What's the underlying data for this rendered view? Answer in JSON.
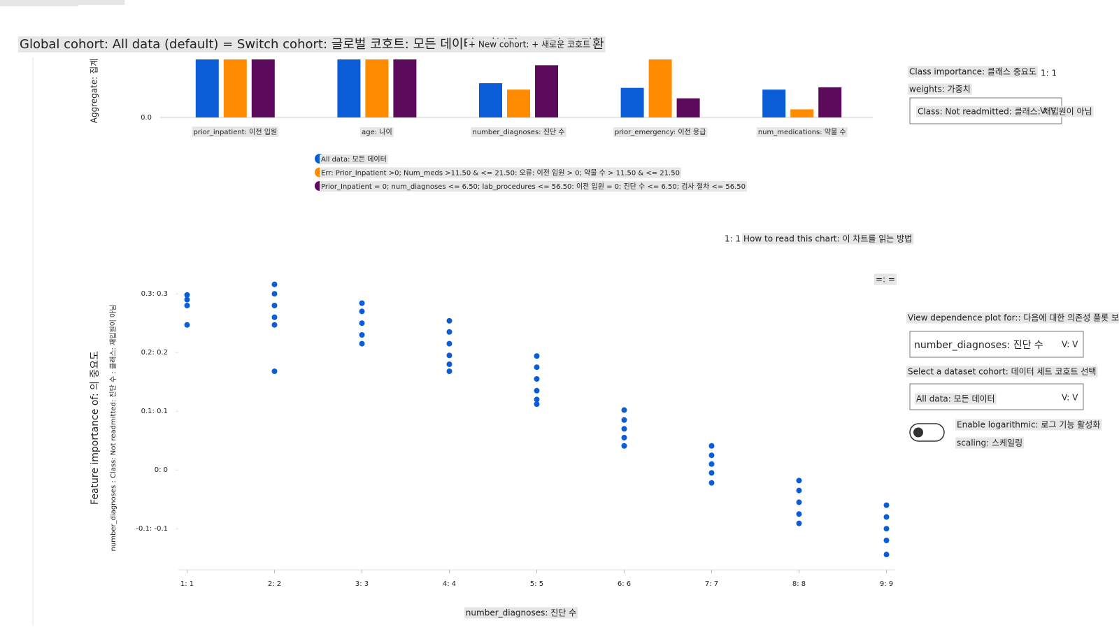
{
  "header": {
    "cohort_title": "Global cohort: All data (default) = Switch cohort: 글로벌 코호트: 모든 데이터 (기본값) = 코호트 전환",
    "new_cohort": "+ New cohort: + 새로운 코호트"
  },
  "chart_data": [
    {
      "type": "bar",
      "ylabel": "Aggregate: 집계",
      "categories": [
        "prior_inpatient: 이전 입원",
        "age: 나이",
        "number_diagnoses: 진단 수",
        "prior_emergency: 이전 응급",
        "num_medications: 약물 수"
      ],
      "ylim": [
        0,
        1
      ],
      "yticks": [
        {
          "value": 0,
          "label": "0.0"
        }
      ],
      "series": [
        {
          "name": "All data: 모든 데이터",
          "color": "#0b5cd7",
          "values": [
            1,
            1,
            0.59,
            0.51,
            0.48
          ]
        },
        {
          "name": "Err: Prior_Inpatient >0; Num_meds >11.50 & <= 21.50: 오류: 이전 입원 > 0; 약물 수 > 11.50 & <= 21.50",
          "color": "#ff8c00",
          "values": [
            1,
            1,
            0.48,
            1,
            0.14
          ]
        },
        {
          "name": "Prior_Inpatient = 0; num_diagnoses <= 6.50; lab_procedures <= 56.50: 이전 입원 = 0; 진단 수 <= 6.50; 검사 절차 <= 56.50",
          "color": "#5c0a5c",
          "values": [
            1,
            1,
            0.9,
            0.33,
            0.52
          ]
        }
      ]
    },
    {
      "type": "scatter",
      "ylabel": "Feature importance of: 의 중요도",
      "ylabel2": "number_diagnoses : Class: Not readmitted: 진단 수 : 클래스: 재입원이 아님",
      "xlabel": "number_diagnoses: 진단 수",
      "color": "#0b5cd7",
      "grid": false,
      "xlim": [
        0.9,
        9.1
      ],
      "ylim": [
        -0.17,
        0.33
      ],
      "xticks": [
        {
          "value": 1,
          "label": "1: 1"
        },
        {
          "value": 2,
          "label": "2: 2"
        },
        {
          "value": 3,
          "label": "3: 3"
        },
        {
          "value": 4,
          "label": "4: 4"
        },
        {
          "value": 5,
          "label": "5: 5"
        },
        {
          "value": 6,
          "label": "6: 6"
        },
        {
          "value": 7,
          "label": "7: 7"
        },
        {
          "value": 8,
          "label": "8: 8"
        },
        {
          "value": 9,
          "label": "9: 9"
        }
      ],
      "yticks": [
        {
          "value": -0.1,
          "label": "-0.1: -0.1"
        },
        {
          "value": 0,
          "label": "0: 0"
        },
        {
          "value": 0.1,
          "label": "0.1: 0.1"
        },
        {
          "value": 0.2,
          "label": "0.2: 0.2"
        },
        {
          "value": 0.3,
          "label": "0.3: 0.3"
        }
      ],
      "x": [
        1,
        1,
        1,
        1,
        2,
        2,
        2,
        2,
        2,
        2,
        3,
        3,
        3,
        3,
        3,
        4,
        4,
        4,
        4,
        4,
        4,
        5,
        5,
        5,
        5,
        5,
        5,
        6,
        6,
        6,
        6,
        6,
        7,
        7,
        7,
        7,
        7,
        8,
        8,
        8,
        8,
        8,
        9,
        9,
        9,
        9,
        9
      ],
      "values": [
        0.298,
        0.29,
        0.28,
        0.247,
        0.316,
        0.3,
        0.28,
        0.26,
        0.247,
        0.168,
        0.284,
        0.27,
        0.25,
        0.23,
        0.215,
        0.254,
        0.235,
        0.215,
        0.195,
        0.18,
        0.168,
        0.194,
        0.175,
        0.155,
        0.135,
        0.12,
        0.112,
        0.102,
        0.085,
        0.07,
        0.055,
        0.041,
        0.041,
        0.025,
        0.01,
        -0.005,
        -0.022,
        -0.018,
        -0.035,
        -0.055,
        -0.075,
        -0.091,
        -0.06,
        -0.08,
        -0.1,
        -0.12,
        -0.144
      ]
    }
  ],
  "toolbar": {
    "help_icon": "1: 1",
    "help": "How to read this chart: 이 차트를 읽는 방법",
    "menu": "=: ="
  },
  "panel": {
    "class_importance": "Class importance: 클래스 중요도",
    "weights": "weights: 가중치",
    "info_icon": "1: 1",
    "class_dropdown": "Class: Not readmitted: 클래스: 재입원이 아님",
    "chevron": "V: V",
    "dependence_label": "View dependence plot for:: 다음에 대한 의존성 플롯 보기:",
    "dependence_dropdown": "number_diagnoses: 진단 수",
    "cohort_label": "Select a dataset cohort: 데이터 세트 코호트 선택",
    "cohort_dropdown": "All data: 모든 데이터",
    "log_label": "Enable logarithmic: 로그 기능 활성화",
    "log_label2": "scaling: 스케일링"
  }
}
